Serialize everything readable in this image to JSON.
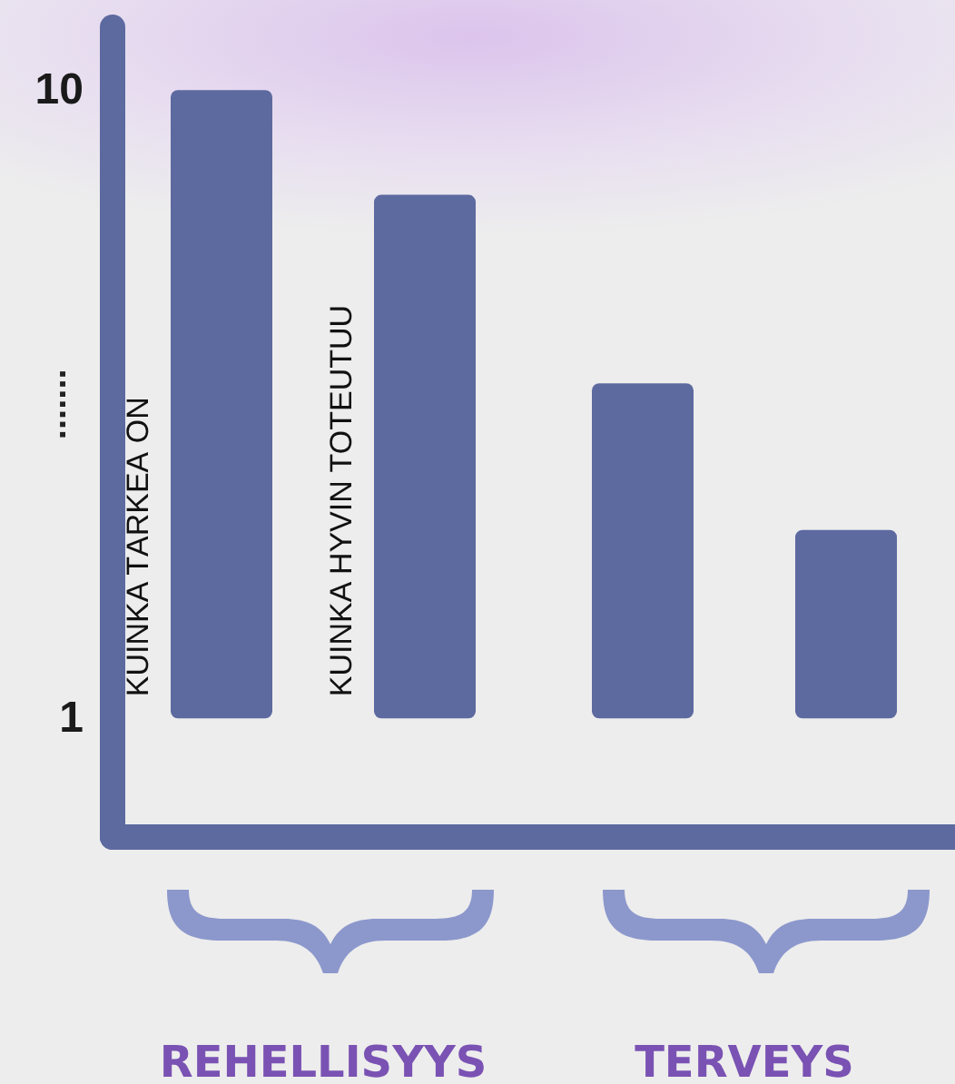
{
  "chart_data": {
    "type": "bar",
    "categories": [
      "REHELLISYYS",
      "TERVEYS"
    ],
    "series": [
      {
        "name": "KUINKA TÄRKEÄ ON",
        "color": "#5d6aa0",
        "values": [
          9,
          4.8
        ],
        "base": [
          1,
          1
        ]
      },
      {
        "name": "KUINKA HYVIN TOTEUTUU",
        "color": "#5d6aa0",
        "values": [
          7.5,
          2.7
        ],
        "base": [
          1,
          1
        ]
      }
    ],
    "ylim": [
      -0.7,
      10.9
    ],
    "yticks": [
      1,
      10
    ],
    "annotations": [
      "......."
    ],
    "grid": false,
    "legend": false
  }
}
